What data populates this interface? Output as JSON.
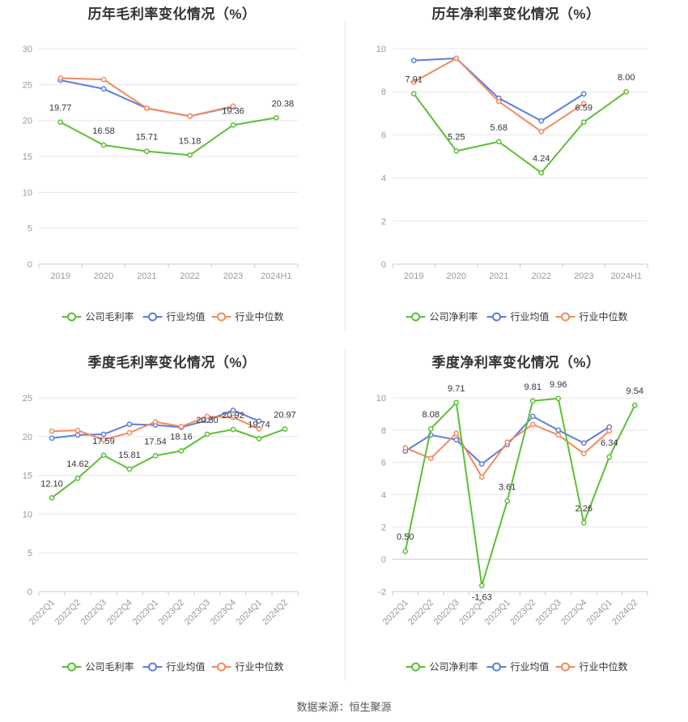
{
  "source": "数据来源：恒生聚源",
  "chart_data": [
    {
      "type": "line",
      "title": "历年毛利率变化情况（%）",
      "categories": [
        "2019",
        "2020",
        "2021",
        "2022",
        "2023",
        "2024H1"
      ],
      "ylim": [
        0,
        30
      ],
      "yticks": [
        0,
        5,
        10,
        15,
        20,
        25,
        30
      ],
      "grid": true,
      "legend_position": "bottom",
      "series": [
        {
          "name": "公司毛利率",
          "color": "#5ac036",
          "values": [
            19.77,
            16.58,
            15.71,
            15.18,
            19.36,
            20.38
          ],
          "labels": [
            "19.77",
            "16.58",
            "15.71",
            "15.18",
            "19.36",
            "20.38"
          ]
        },
        {
          "name": "行业均值",
          "color": "#5b7fde",
          "values": [
            25.6,
            24.4,
            21.7,
            20.6,
            21.9,
            null
          ]
        },
        {
          "name": "行业中位数",
          "color": "#f3895f",
          "values": [
            25.9,
            25.7,
            21.7,
            20.6,
            22.0,
            null
          ]
        }
      ]
    },
    {
      "type": "line",
      "title": "历年净利率变化情况（%）",
      "categories": [
        "2019",
        "2020",
        "2021",
        "2022",
        "2023",
        "2024H1"
      ],
      "ylim": [
        0,
        10
      ],
      "yticks": [
        0,
        2,
        4,
        6,
        8,
        10
      ],
      "grid": true,
      "legend_position": "bottom",
      "series": [
        {
          "name": "公司净利率",
          "color": "#5ac036",
          "values": [
            7.91,
            5.25,
            5.68,
            4.24,
            6.59,
            8.0
          ],
          "labels": [
            "7.91",
            "5.25",
            "5.68",
            "4.24",
            "6.59",
            "8.00"
          ]
        },
        {
          "name": "行业均值",
          "color": "#5b7fde",
          "values": [
            9.45,
            9.55,
            7.7,
            6.65,
            7.9,
            null
          ]
        },
        {
          "name": "行业中位数",
          "color": "#f3895f",
          "values": [
            8.45,
            9.55,
            7.55,
            6.15,
            7.45,
            null
          ]
        }
      ]
    },
    {
      "type": "line",
      "title": "季度毛利率变化情况（%）",
      "categories": [
        "2022Q1",
        "2022Q2",
        "2022Q3",
        "2022Q4",
        "2023Q1",
        "2023Q2",
        "2023Q3",
        "2023Q4",
        "2024Q1",
        "2024Q2"
      ],
      "ylim": [
        0,
        25
      ],
      "yticks": [
        0,
        5,
        10,
        15,
        20,
        25
      ],
      "grid": true,
      "legend_position": "bottom",
      "series": [
        {
          "name": "公司毛利率",
          "color": "#5ac036",
          "values": [
            12.1,
            14.62,
            17.59,
            15.81,
            17.54,
            18.16,
            20.3,
            20.92,
            19.74,
            20.97
          ],
          "labels": [
            "12.10",
            "14.62",
            "17.59",
            "15.81",
            "17.54",
            "18.16",
            "20.30",
            "20.92",
            "19.74",
            "20.97"
          ]
        },
        {
          "name": "行业均值",
          "color": "#5b7fde",
          "values": [
            19.8,
            20.2,
            20.3,
            21.6,
            21.5,
            21.2,
            22.1,
            23.4,
            22.0,
            null
          ]
        },
        {
          "name": "行业中位数",
          "color": "#f3895f",
          "values": [
            20.7,
            20.8,
            19.6,
            20.5,
            21.9,
            21.3,
            22.6,
            22.5,
            21.0,
            null
          ]
        }
      ]
    },
    {
      "type": "line",
      "title": "季度净利率变化情况（%）",
      "categories": [
        "2022Q1",
        "2022Q2",
        "2022Q3",
        "2022Q4",
        "2023Q1",
        "2023Q2",
        "2023Q3",
        "2023Q4",
        "2024Q1",
        "2024Q2"
      ],
      "ylim": [
        -2,
        10
      ],
      "yticks": [
        -2,
        0,
        2,
        4,
        6,
        8,
        10
      ],
      "grid": true,
      "legend_position": "bottom",
      "series": [
        {
          "name": "公司净利率",
          "color": "#5ac036",
          "values": [
            0.5,
            8.08,
            9.71,
            -1.63,
            3.61,
            9.81,
            9.96,
            2.26,
            6.34,
            9.54
          ],
          "labels": [
            "0.50",
            "8.08",
            "9.71",
            "-1.63",
            "3.61",
            "9.81",
            "9.96",
            "2.26",
            "6.34",
            "9.54"
          ]
        },
        {
          "name": "行业均值",
          "color": "#5b7fde",
          "values": [
            6.7,
            7.7,
            7.4,
            5.9,
            7.1,
            8.85,
            8.0,
            7.2,
            8.2,
            null
          ]
        },
        {
          "name": "行业中位数",
          "color": "#f3895f",
          "values": [
            6.9,
            6.25,
            7.8,
            5.1,
            7.25,
            8.35,
            7.7,
            6.55,
            7.95,
            null
          ]
        }
      ]
    }
  ]
}
